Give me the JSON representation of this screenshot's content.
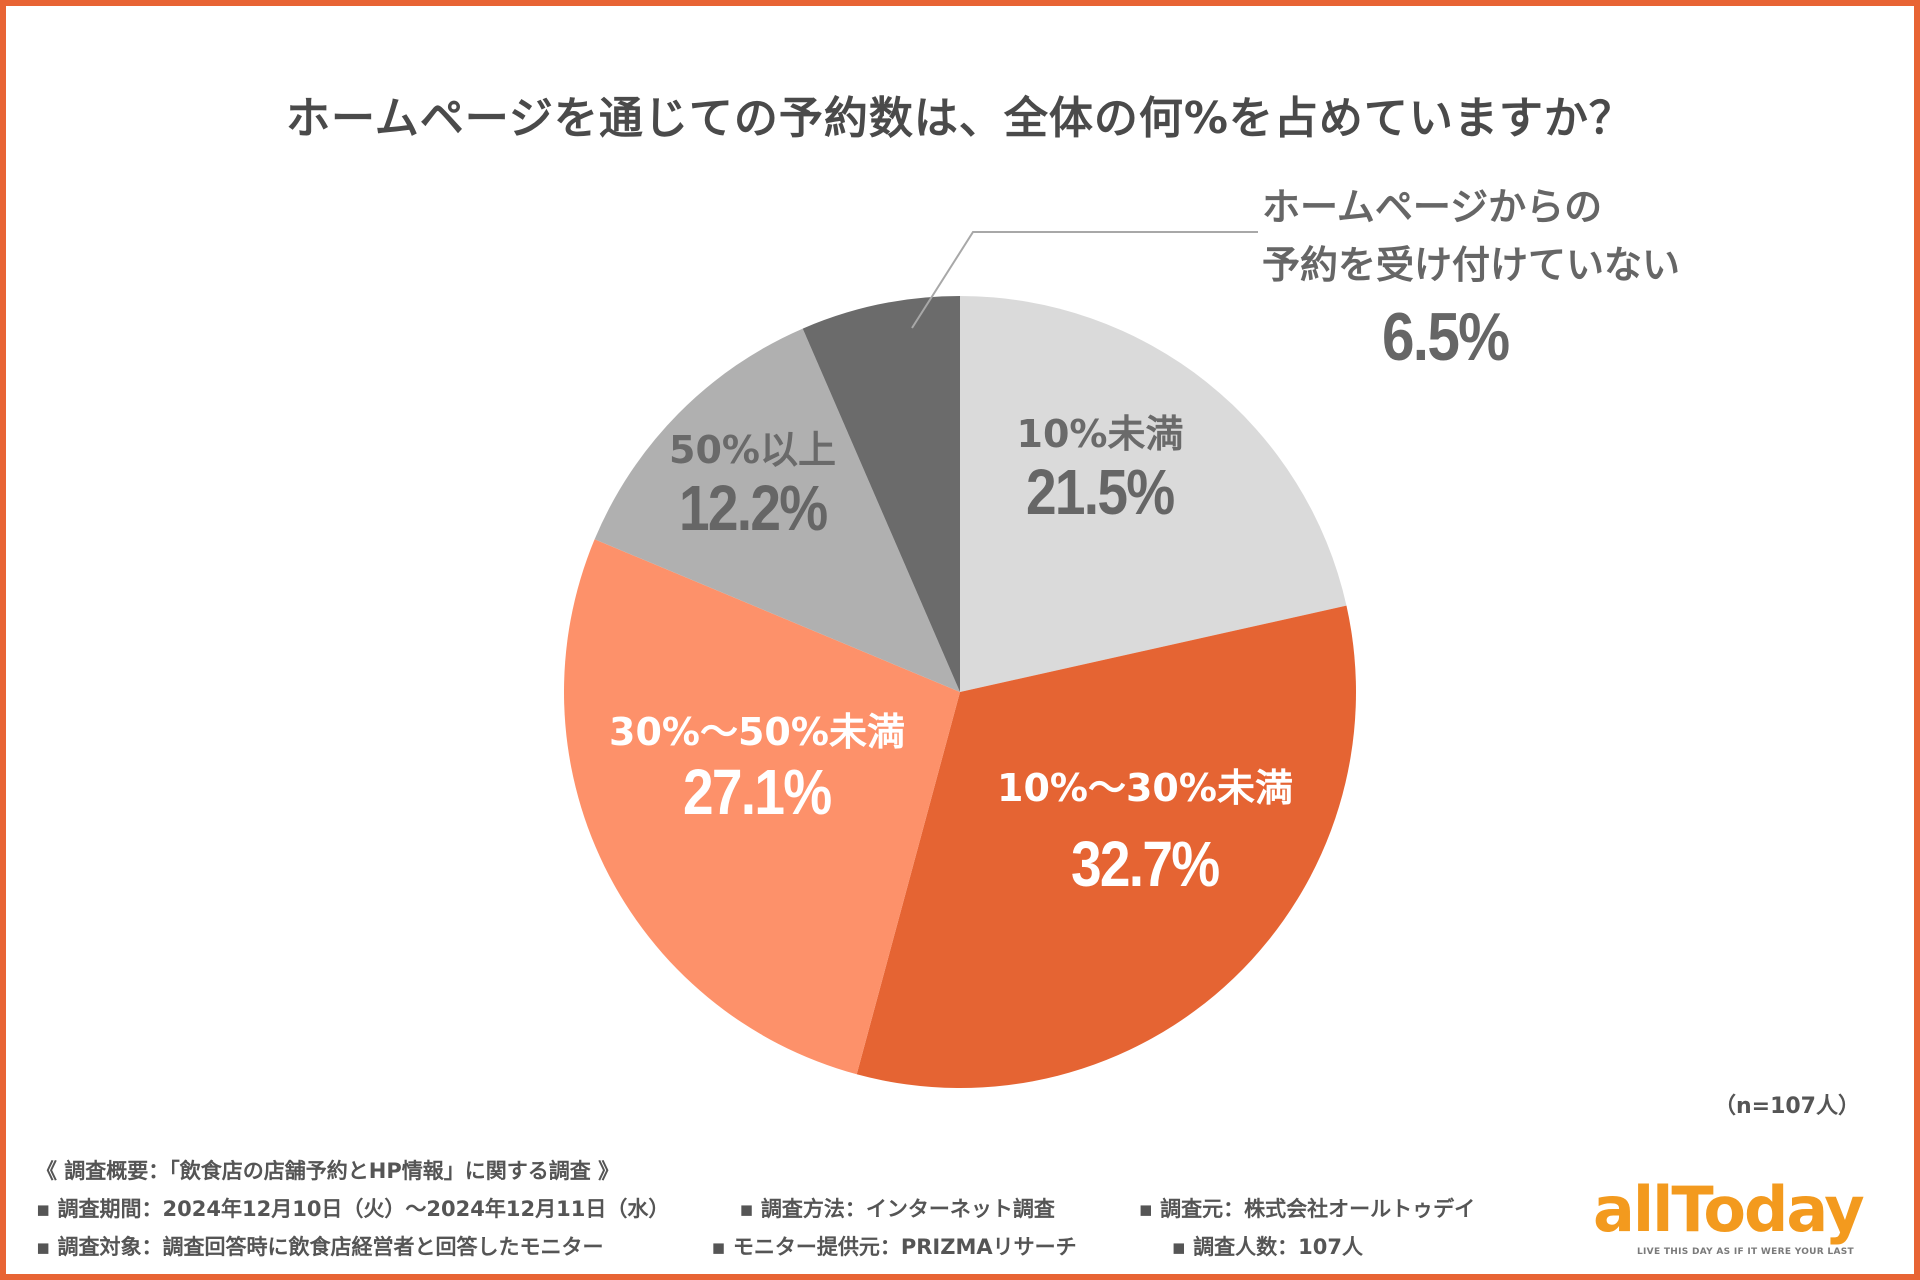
{
  "chart_data": {
    "type": "pie",
    "title": "ホームページを通じての予約数は、全体の何%を占めていますか？",
    "start": "12 o'clock",
    "direction": "clockwise",
    "slices": [
      {
        "label": "10%未満",
        "value": 21.5,
        "display": "21.5%",
        "color": "#dadada",
        "text_color": "#6a6a6a"
      },
      {
        "label": "10%〜30%未満",
        "value": 32.7,
        "display": "32.7%",
        "color": "#e56433",
        "text_color": "#ffffff"
      },
      {
        "label": "30%〜50%未満",
        "value": 27.1,
        "display": "27.1%",
        "color": "#fd916a",
        "text_color": "#ffffff"
      },
      {
        "label": "50%以上",
        "value": 12.2,
        "display": "12.2%",
        "color": "#b0b0b0",
        "text_color": "#6a6a6a"
      },
      {
        "label": "ホームページからの予約を受け付けていない",
        "value": 6.5,
        "display": "6.5%",
        "color": "#6b6b6b",
        "text_color": "#666666"
      }
    ],
    "callout": {
      "lines": [
        "ホームページからの",
        "予約を受け付けていない"
      ],
      "value": "6.5%"
    },
    "sample_size": "（n=107人）",
    "legend": "none"
  },
  "footer": {
    "heading": "《 調査概要：「飲食店の店舗予約とHP情報」に関する調査 》",
    "row1": [
      "▪ 調査期間：2024年12月10日（火）〜2024年12月11日（水）",
      "▪ 調査方法：インターネット調査",
      "▪ 調査元：株式会社オールトゥデイ"
    ],
    "row2": [
      "▪ 調査対象：調査回答時に飲食店経営者と回答したモニター",
      "▪ モニター提供元：PRIZMAリサーチ",
      "▪ 調査人数：107人"
    ]
  },
  "logo": {
    "word": "allToday",
    "tagline": "LIVE THIS DAY AS IF IT WERE YOUR LAST",
    "color": "#f39a1e"
  },
  "frame_color": "#e86434"
}
